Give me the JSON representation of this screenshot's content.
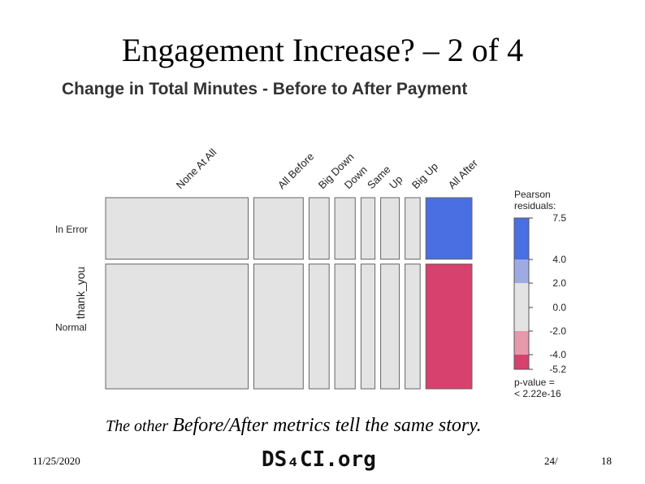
{
  "slide": {
    "title": "Engagement Increase? – 2 of 4",
    "caption_lead": "The other ",
    "caption_rest": "Before/After metrics tell the same story.",
    "date": "11/25/2020",
    "logo": "DS₄CI.org",
    "page": "24/",
    "number": "18"
  },
  "chart_data": {
    "type": "mosaic",
    "title": "Change in Total Minutes - Before to After Payment",
    "ylabel": "thank_you",
    "columns": [
      "None At All",
      "All Before",
      "Big Down",
      "Down",
      "Same",
      "Up",
      "Big Up",
      "All After"
    ],
    "rows": [
      "In Error",
      "Normal"
    ],
    "column_proportions": [
      0.397,
      0.139,
      0.058,
      0.059,
      0.041,
      0.054,
      0.044,
      0.13
    ],
    "row_proportions": [
      0.33,
      0.67
    ],
    "residual_class": [
      [
        "neutral",
        "neutral",
        "neutral",
        "neutral",
        "neutral",
        "neutral",
        "neutral",
        "high"
      ],
      [
        "neutral",
        "neutral",
        "neutral",
        "neutral",
        "neutral",
        "neutral",
        "neutral",
        "low"
      ]
    ],
    "legend": {
      "title_line1": "Pearson",
      "title_line2": "residuals:",
      "ticks": [
        "7.5",
        "4.0",
        "2.0",
        "0.0",
        "-2.0",
        "-4.0",
        "-5.2"
      ],
      "pvalue_line1": "p-value =",
      "pvalue_line2": "< 2.22e-16",
      "placement": "right"
    },
    "colors": {
      "neutral": "#e3e3e3",
      "high": "#4a6fe3",
      "mid_high": "#9eabe3",
      "low": "#d6416e",
      "mid_low": "#e599ab",
      "border": "#666666"
    }
  }
}
